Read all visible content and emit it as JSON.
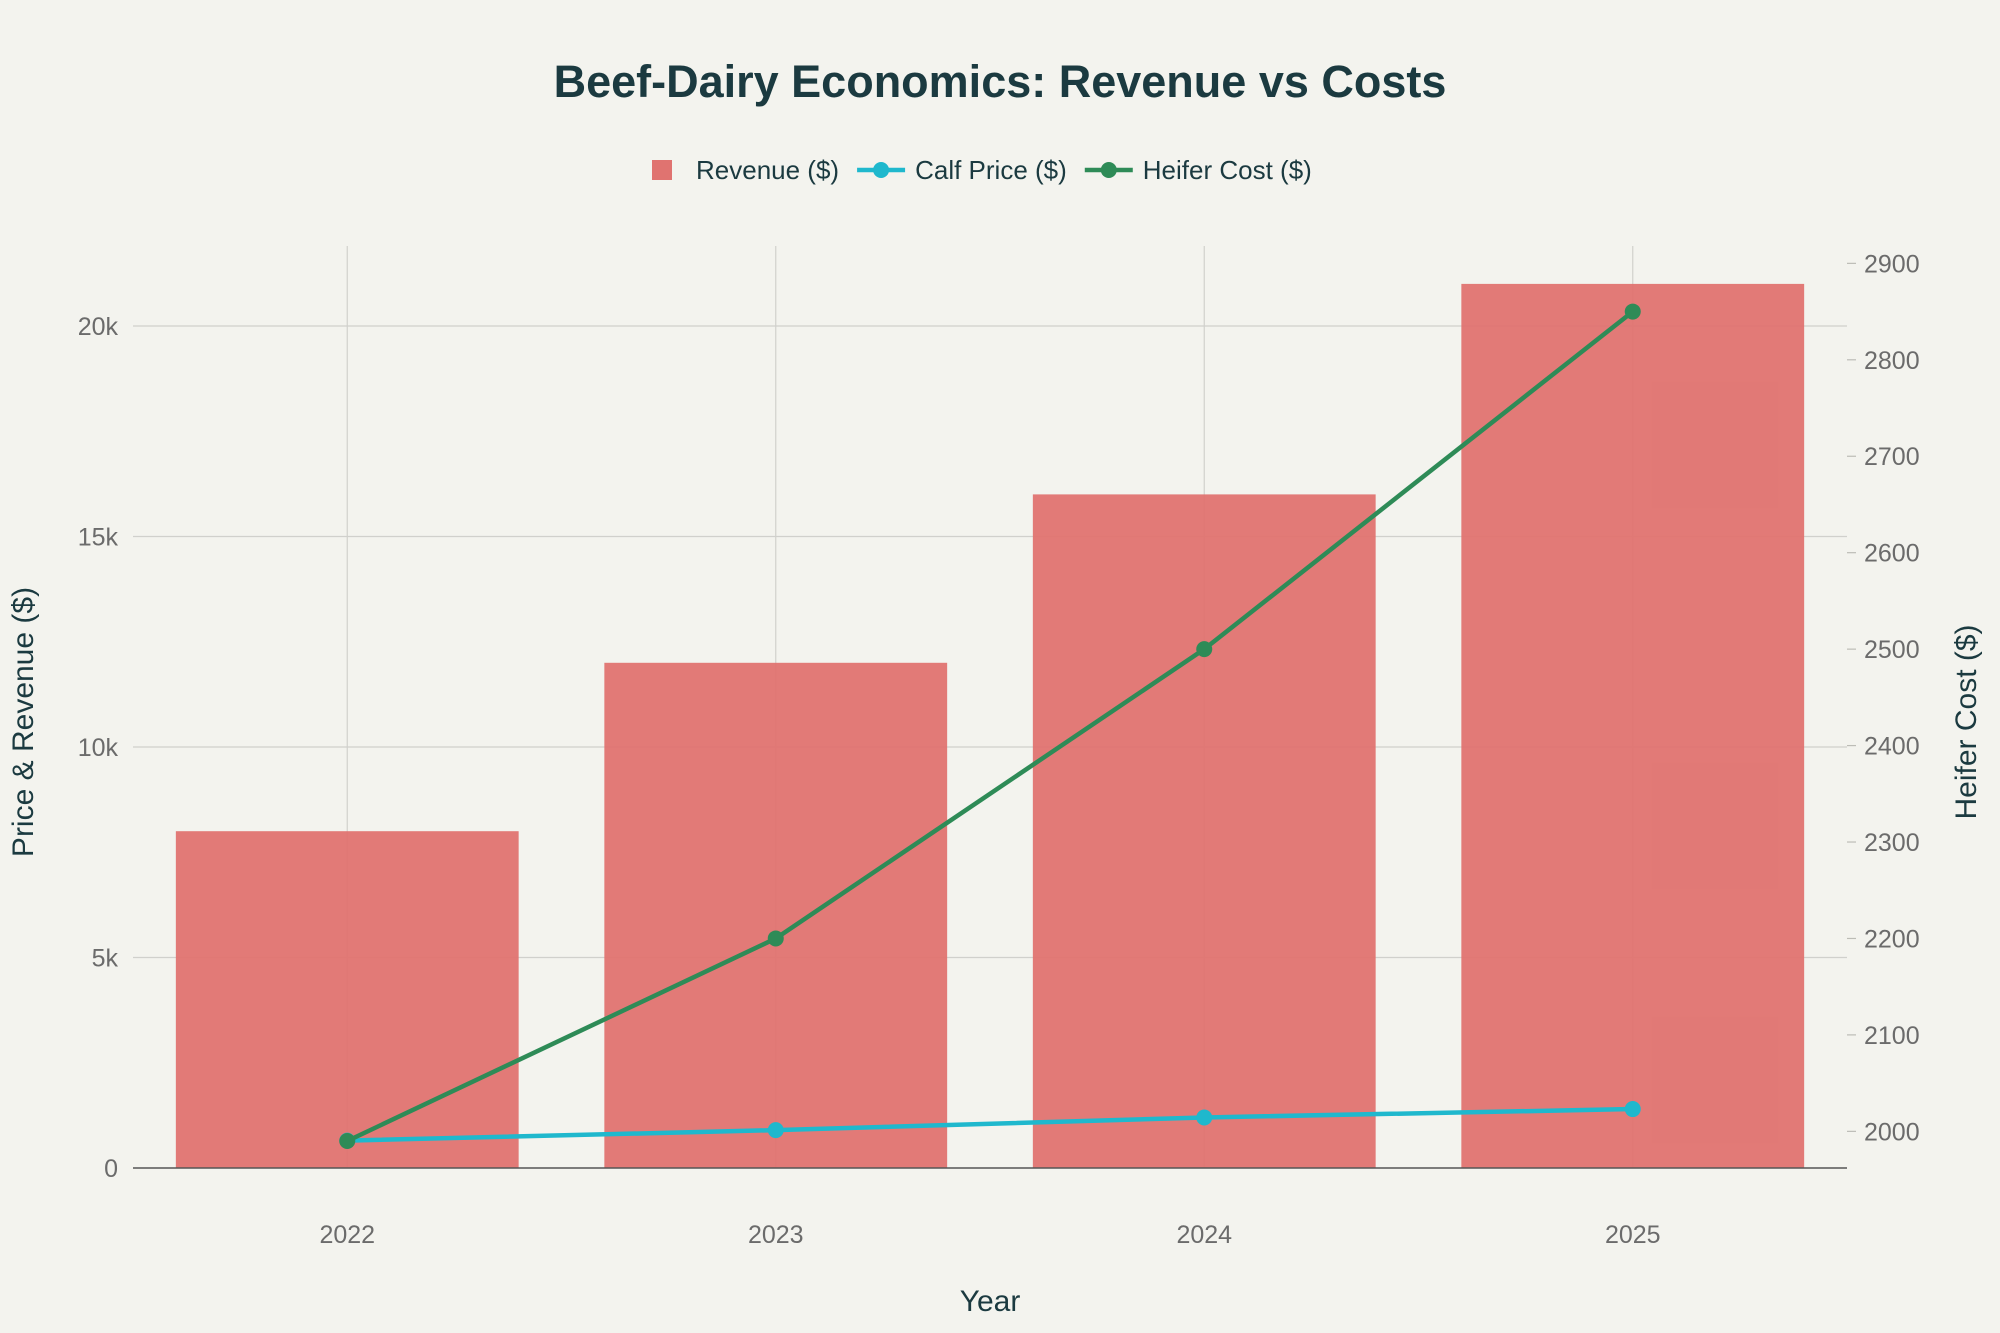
{
  "chart_data": {
    "type": "bar",
    "title": "Beef-Dairy Economics: Revenue vs Costs",
    "xlabel": "Year",
    "ylabel": "Price & Revenue ($)",
    "y2label": "Heifer Cost ($)",
    "categories": [
      "2022",
      "2023",
      "2024",
      "2025"
    ],
    "ylim": [
      0,
      21900
    ],
    "y2lim": [
      1962,
      2918
    ],
    "yticks": [
      0,
      5000,
      10000,
      15000,
      20000
    ],
    "ytick_labels": [
      "0",
      "5k",
      "10k",
      "15k",
      "20k"
    ],
    "y2ticks": [
      2000,
      2100,
      2200,
      2300,
      2400,
      2500,
      2600,
      2700,
      2800,
      2900
    ],
    "grid": true,
    "legend_position": "top-center",
    "series": [
      {
        "name": "Revenue ($)",
        "kind": "bar",
        "axis": "left",
        "color": "#e07370",
        "values": [
          8000,
          12000,
          16000,
          21000
        ]
      },
      {
        "name": "Calf Price ($)",
        "kind": "line",
        "axis": "left",
        "color": "#1fb8cd",
        "values": [
          650,
          900,
          1200,
          1400
        ]
      },
      {
        "name": "Heifer Cost ($)",
        "kind": "line",
        "axis": "right",
        "color": "#2e8b57",
        "values": [
          1990,
          2200,
          2500,
          2850
        ]
      }
    ]
  }
}
